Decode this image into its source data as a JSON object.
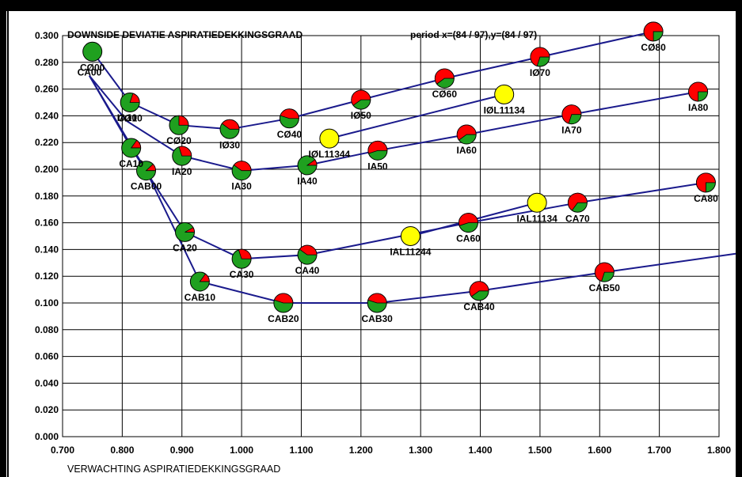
{
  "chart_data": {
    "type": "scatter",
    "title": "DOWNSIDE DEVIATIE ASPIRATIEDEKKINGSGRAAD",
    "subtitle": "period x=(84 / 97),y=(84 / 97)",
    "xlabel": "VERWACHTING ASPIRATIEDEKKINGSGRAAD",
    "ylabel": "",
    "xlim": [
      0.7,
      1.8
    ],
    "ylim": [
      0.0,
      0.3
    ],
    "xticks": [
      "0.700",
      "0.800",
      "0.900",
      "1.000",
      "1.100",
      "1.200",
      "1.300",
      "1.400",
      "1.500",
      "1.600",
      "1.700",
      "1.800"
    ],
    "yticks": [
      "0.000",
      "0.020",
      "0.040",
      "0.060",
      "0.080",
      "0.100",
      "0.120",
      "0.140",
      "0.160",
      "0.180",
      "0.200",
      "0.220",
      "0.240",
      "0.260",
      "0.280",
      "0.300"
    ],
    "grid": true,
    "line_color": "#1a1a8c",
    "colors": {
      "red": "#ff0000",
      "green": "#1fa01f",
      "yellow": "#ffff00"
    },
    "series": [
      {
        "name": "CØ",
        "points": [
          "CØ00",
          "CØ10",
          "CØ20",
          "IØ30",
          "CØ40",
          "IØ50",
          "CØ60",
          "IØ70",
          "CØ80"
        ]
      },
      {
        "name": "IA",
        "points": [
          "CA00",
          "IA10",
          "IA20",
          "IA30",
          "IA40",
          "IA50",
          "IA60",
          "IA70",
          "IA80"
        ]
      },
      {
        "name": "CA",
        "points": [
          "CA00",
          "CA10",
          "CA20",
          "CA30",
          "CA40",
          "CA60",
          "CA70",
          "CA80"
        ]
      },
      {
        "name": "CAB",
        "points": [
          "CA00",
          "CAB00",
          "CAB10",
          "CAB20",
          "CAB30",
          "CAB40",
          "CAB50",
          "EDGE"
        ]
      },
      {
        "name": "IØL",
        "points": [
          "IØL11344",
          "IØL11134"
        ]
      },
      {
        "name": "IAL",
        "points": [
          "IAL11244",
          "IAL11134"
        ]
      }
    ],
    "points": [
      {
        "id": "CØ00",
        "label": "CØ00",
        "x": 0.75,
        "y": 0.288,
        "red": 0.0,
        "color": "green"
      },
      {
        "id": "CA00",
        "label": "CA00",
        "x": 0.745,
        "y": 0.27,
        "red": 0.0,
        "color": "none"
      },
      {
        "id": "CØ10",
        "label": "CØ10",
        "x": 0.813,
        "y": 0.25,
        "red": 0.2,
        "color": "green"
      },
      {
        "id": "IA10",
        "label": "IA10",
        "x": 0.808,
        "y": 0.236,
        "red": 0.0,
        "color": "none"
      },
      {
        "id": "CA10",
        "label": "CA10",
        "x": 0.815,
        "y": 0.216,
        "red": 0.15,
        "color": "green"
      },
      {
        "id": "CAB00",
        "label": "CAB00",
        "x": 0.84,
        "y": 0.199,
        "red": 0.12,
        "color": "green"
      },
      {
        "id": "CØ20",
        "label": "CØ20",
        "x": 0.895,
        "y": 0.233,
        "red": 0.25,
        "color": "green"
      },
      {
        "id": "IA20",
        "label": "IA20",
        "x": 0.9,
        "y": 0.21,
        "red": 0.3,
        "color": "green"
      },
      {
        "id": "CA20",
        "label": "CA20",
        "x": 0.905,
        "y": 0.153,
        "red": 0.08,
        "color": "green"
      },
      {
        "id": "CAB10",
        "label": "CAB10",
        "x": 0.93,
        "y": 0.116,
        "red": 0.15,
        "color": "green"
      },
      {
        "id": "IØ30",
        "label": "IØ30",
        "x": 0.98,
        "y": 0.23,
        "red": 0.4,
        "color": "green"
      },
      {
        "id": "IA30",
        "label": "IA30",
        "x": 1.0,
        "y": 0.199,
        "red": 0.4,
        "color": "green"
      },
      {
        "id": "CA30",
        "label": "CA30",
        "x": 1.0,
        "y": 0.133,
        "red": 0.3,
        "color": "green"
      },
      {
        "id": "CAB20",
        "label": "CAB20",
        "x": 1.07,
        "y": 0.1,
        "red": 0.45,
        "color": "green"
      },
      {
        "id": "CØ40",
        "label": "CØ40",
        "x": 1.08,
        "y": 0.238,
        "red": 0.45,
        "color": "green"
      },
      {
        "id": "IA40",
        "label": "IA40",
        "x": 1.11,
        "y": 0.203,
        "red": 0.1,
        "color": "green"
      },
      {
        "id": "CA40",
        "label": "CA40",
        "x": 1.11,
        "y": 0.136,
        "red": 0.4,
        "color": "green"
      },
      {
        "id": "IØL11344",
        "label": "IØL11344",
        "x": 1.147,
        "y": 0.223,
        "red": 0.0,
        "color": "yellow"
      },
      {
        "id": "IØ50",
        "label": "IØ50",
        "x": 1.2,
        "y": 0.252,
        "red": 0.6,
        "color": "green"
      },
      {
        "id": "IA50",
        "label": "IA50",
        "x": 1.228,
        "y": 0.214,
        "red": 0.55,
        "color": "green"
      },
      {
        "id": "CAB30",
        "label": "CAB30",
        "x": 1.227,
        "y": 0.1,
        "red": 0.45,
        "color": "green"
      },
      {
        "id": "IAL11244",
        "label": "IAL11244",
        "x": 1.283,
        "y": 0.15,
        "red": 0.0,
        "color": "yellow"
      },
      {
        "id": "CØ60",
        "label": "CØ60",
        "x": 1.34,
        "y": 0.268,
        "red": 0.6,
        "color": "green"
      },
      {
        "id": "IA60",
        "label": "IA60",
        "x": 1.377,
        "y": 0.226,
        "red": 0.6,
        "color": "green"
      },
      {
        "id": "CA60",
        "label": "CA60",
        "x": 1.38,
        "y": 0.16,
        "red": 0.55,
        "color": "green"
      },
      {
        "id": "CAB40",
        "label": "CAB40",
        "x": 1.398,
        "y": 0.109,
        "red": 0.6,
        "color": "green"
      },
      {
        "id": "IØL11134",
        "label": "IØL11134",
        "x": 1.44,
        "y": 0.256,
        "red": 0.0,
        "color": "yellow"
      },
      {
        "id": "IAL11134",
        "label": "IAL11134",
        "x": 1.495,
        "y": 0.175,
        "red": 0.0,
        "color": "yellow"
      },
      {
        "id": "IØ70",
        "label": "IØ70",
        "x": 1.5,
        "y": 0.284,
        "red": 0.7,
        "color": "green"
      },
      {
        "id": "IA70",
        "label": "IA70",
        "x": 1.553,
        "y": 0.241,
        "red": 0.7,
        "color": "green"
      },
      {
        "id": "CA70",
        "label": "CA70",
        "x": 1.563,
        "y": 0.175,
        "red": 0.65,
        "color": "green"
      },
      {
        "id": "CAB50",
        "label": "CAB50",
        "x": 1.608,
        "y": 0.123,
        "red": 0.7,
        "color": "green"
      },
      {
        "id": "CØ80",
        "label": "CØ80",
        "x": 1.69,
        "y": 0.303,
        "red": 0.75,
        "color": "green"
      },
      {
        "id": "IA80",
        "label": "IA80",
        "x": 1.765,
        "y": 0.258,
        "red": 0.75,
        "color": "green"
      },
      {
        "id": "CA80",
        "label": "CA80",
        "x": 1.778,
        "y": 0.19,
        "red": 0.75,
        "color": "green"
      },
      {
        "id": "EDGE",
        "label": "",
        "x": 1.83,
        "y": 0.137,
        "red": 0.0,
        "color": "none"
      }
    ]
  }
}
